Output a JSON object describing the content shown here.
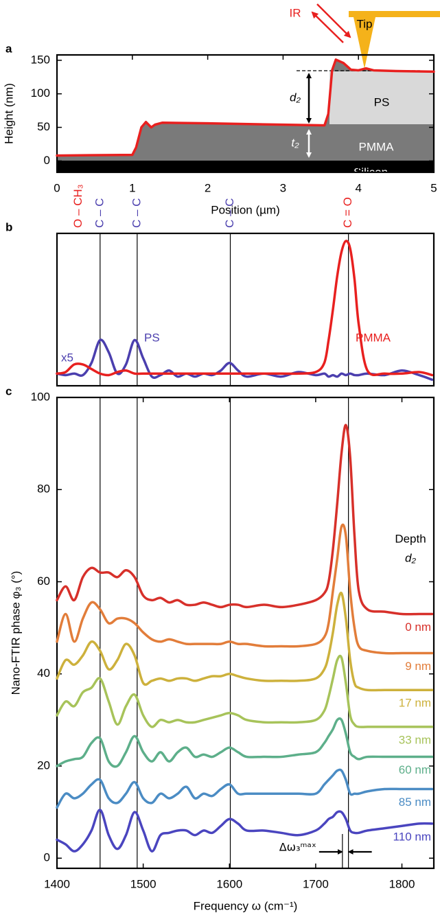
{
  "chart_data": [
    {
      "panel": "a",
      "type": "line",
      "xlabel": "Position (µm)",
      "ylabel": "Height (nm)",
      "x": [
        0,
        1,
        1.05,
        1.12,
        1.18,
        1.25,
        1.3,
        1.4,
        2,
        3,
        3.55,
        3.6,
        3.65,
        3.7,
        3.8,
        3.9,
        4,
        4.1,
        4.2,
        4.5,
        5
      ],
      "series": [
        {
          "color": "#e8201f",
          "values": [
            8,
            9,
            20,
            50,
            58,
            50,
            54,
            57,
            56,
            54,
            53,
            70,
            135,
            151,
            146,
            136,
            135,
            138,
            135,
            134,
            133
          ]
        }
      ],
      "xlim": [
        0,
        5
      ],
      "ylim": [
        -17,
        158
      ],
      "xticks": [
        0,
        1,
        2,
        3,
        4,
        5
      ],
      "yticks": [
        0,
        50,
        100,
        150
      ],
      "fill": "#7a7a7a",
      "smooth": false,
      "annotations": [
        "IR",
        "Tip",
        "d₂",
        "t₂",
        "PS",
        "PMMA",
        "Silicon"
      ]
    },
    {
      "panel": "b",
      "type": "line",
      "x": [
        1400,
        1410,
        1420,
        1430,
        1440,
        1450,
        1460,
        1470,
        1480,
        1490,
        1500,
        1510,
        1520,
        1530,
        1540,
        1550,
        1560,
        1570,
        1580,
        1590,
        1600,
        1610,
        1620,
        1640,
        1660,
        1680,
        1700,
        1710,
        1715,
        1720,
        1725,
        1730,
        1735,
        1740,
        1745,
        1750,
        1760,
        1780,
        1800,
        1820,
        1835
      ],
      "series": [
        {
          "name": "PS",
          "color": "#4b3fae",
          "values": [
            0.08,
            0.07,
            0.08,
            0.07,
            0.15,
            0.3,
            0.22,
            0.08,
            0.14,
            0.3,
            0.18,
            0.06,
            0.07,
            0.1,
            0.06,
            0.08,
            0.06,
            0.08,
            0.07,
            0.1,
            0.15,
            0.1,
            0.06,
            0.08,
            0.06,
            0.09,
            0.07,
            0.08,
            0.06,
            0.07,
            0.06,
            0.08,
            0.07,
            0.08,
            0.07,
            0.07,
            0.08,
            0.07,
            0.1,
            0.07,
            0.04
          ]
        },
        {
          "name": "PMMA",
          "color": "#e8201f",
          "values": [
            0.08,
            0.09,
            0.14,
            0.14,
            0.11,
            0.08,
            0.07,
            0.09,
            0.1,
            0.08,
            0.08,
            0.08,
            0.08,
            0.08,
            0.08,
            0.08,
            0.08,
            0.08,
            0.08,
            0.08,
            0.08,
            0.08,
            0.08,
            0.08,
            0.08,
            0.08,
            0.09,
            0.15,
            0.3,
            0.5,
            0.72,
            0.88,
            0.95,
            0.9,
            0.7,
            0.4,
            0.1,
            0.08,
            0.08,
            0.09,
            0.07
          ]
        }
      ],
      "xlim": [
        1400,
        1837
      ],
      "ylim": [
        0,
        1
      ],
      "smooth": true,
      "scale_note": "x5",
      "peak_labels": [
        {
          "x": 1425,
          "label": "O – CH₃",
          "color": "#e8201f",
          "line": false
        },
        {
          "x": 1450,
          "label": "C – C",
          "color": "#4b3fae",
          "line": true
        },
        {
          "x": 1493,
          "label": "C – C",
          "color": "#4b3fae",
          "line": true
        },
        {
          "x": 1601,
          "label": "C – C",
          "color": "#4b3fae",
          "line": true
        },
        {
          "x": 1738,
          "label": "C = O",
          "color": "#e8201f",
          "line": true
        }
      ]
    },
    {
      "panel": "c",
      "type": "line",
      "xlabel": "Frequency ω (cm⁻¹)",
      "ylabel": "Nano-FTIR phase φ₃ (°)",
      "x": [
        1400,
        1410,
        1420,
        1430,
        1440,
        1450,
        1460,
        1470,
        1480,
        1490,
        1500,
        1510,
        1520,
        1530,
        1540,
        1550,
        1560,
        1570,
        1580,
        1590,
        1600,
        1610,
        1620,
        1640,
        1660,
        1680,
        1700,
        1710,
        1715,
        1720,
        1725,
        1730,
        1735,
        1740,
        1745,
        1750,
        1760,
        1780,
        1800,
        1820,
        1835
      ],
      "series": [
        {
          "name": "0 nm",
          "color": "#d7302a",
          "values": [
            56,
            59,
            56,
            61,
            63,
            62,
            62,
            61,
            62.5,
            61,
            57,
            56,
            56.5,
            55.5,
            56,
            55,
            55,
            55.5,
            55,
            54.5,
            55,
            55,
            54.5,
            55,
            54.5,
            55,
            56,
            57.5,
            60,
            67,
            77,
            88,
            94,
            87,
            70,
            58,
            54,
            53.5,
            53,
            53,
            53
          ]
        },
        {
          "name": "9 nm",
          "color": "#e27d3a",
          "values": [
            47,
            53,
            47,
            52,
            55.5,
            54,
            51,
            52,
            52,
            51,
            49,
            47.5,
            47,
            47.5,
            47,
            46.5,
            46.5,
            46.5,
            46.5,
            46.5,
            47,
            46.5,
            46.5,
            46,
            46,
            46,
            46.5,
            48,
            51,
            58,
            65,
            72,
            70,
            58,
            50,
            46,
            45,
            44.5,
            44.5,
            44.5,
            44.5
          ]
        },
        {
          "name": "17 nm",
          "color": "#cdb13c",
          "values": [
            39,
            43,
            42,
            44,
            47,
            45,
            41,
            43,
            46.5,
            44,
            38,
            38.5,
            39,
            38.5,
            39,
            39,
            38.5,
            39,
            39.5,
            39.5,
            40,
            39.5,
            39,
            38.5,
            38.5,
            38.5,
            39,
            41,
            44,
            49,
            55,
            57.5,
            52,
            43,
            38,
            37,
            36.5,
            36.5,
            36.5,
            36.5,
            36.5
          ]
        },
        {
          "name": "33 nm",
          "color": "#a7c35a",
          "values": [
            31,
            34,
            33,
            36,
            37,
            39,
            34,
            29,
            33,
            35.5,
            31,
            28.5,
            30,
            29.5,
            30,
            29.5,
            29.5,
            30,
            30.5,
            31,
            31.5,
            31,
            30,
            29.5,
            29.5,
            29.5,
            30,
            32,
            35,
            39,
            43,
            43.5,
            38,
            31,
            29,
            28.5,
            28.5,
            28.5,
            28.5,
            28.5,
            28.5
          ]
        },
        {
          "name": "60 nm",
          "color": "#5daf8a",
          "values": [
            20,
            21,
            21.5,
            22,
            25,
            26,
            21,
            20,
            23,
            26.5,
            23,
            21,
            23,
            21,
            23,
            24,
            22,
            22.5,
            22,
            23,
            24,
            23,
            22,
            22,
            22,
            22.5,
            23,
            25,
            26.5,
            28,
            30,
            30,
            27,
            23,
            22,
            21.5,
            22,
            22,
            22,
            22,
            22
          ]
        },
        {
          "name": "85 nm",
          "color": "#4b8cc4",
          "values": [
            11,
            14,
            13,
            14,
            16,
            17,
            13,
            12,
            14,
            16.5,
            13,
            12,
            14,
            13,
            14,
            15.5,
            13,
            14,
            13.5,
            15,
            16,
            14,
            14,
            14,
            14,
            14,
            14,
            16,
            17,
            18,
            19,
            19,
            17,
            14,
            14,
            14,
            14.5,
            15,
            15,
            15,
            15
          ]
        },
        {
          "name": "110 nm",
          "color": "#4a45bf",
          "values": [
            4,
            3,
            1.5,
            3,
            6,
            10.5,
            5,
            2,
            5,
            10,
            6,
            1.5,
            5,
            5.5,
            6,
            6,
            5,
            6,
            5.5,
            7,
            8.5,
            7.5,
            6,
            6,
            5.5,
            5,
            6,
            7.5,
            8.5,
            9,
            10,
            10,
            8.5,
            6,
            5.5,
            5.5,
            6,
            6.5,
            7,
            7.5,
            7.5
          ]
        }
      ],
      "xlim": [
        1400,
        1837
      ],
      "ylim": [
        -2.2,
        100
      ],
      "xticks": [
        1400,
        1500,
        1600,
        1700,
        1800
      ],
      "yticks": [
        0,
        20,
        40,
        60,
        80,
        100
      ],
      "smooth": true,
      "legend_title": [
        "Depth",
        "d₂"
      ],
      "delta": {
        "label": "Δω₃ᵐᵃˣ",
        "from": 1731,
        "to": 1738
      }
    }
  ]
}
